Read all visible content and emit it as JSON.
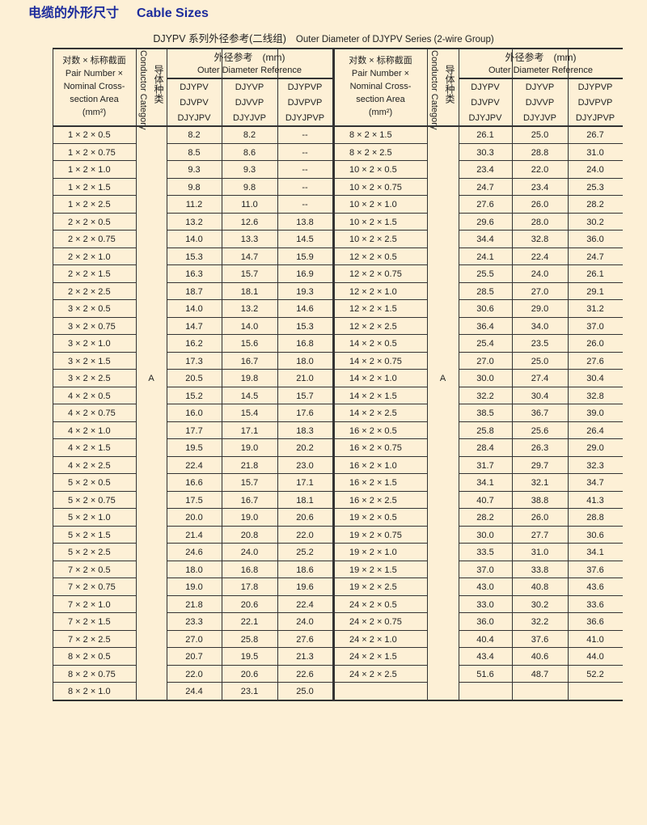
{
  "heading": {
    "zh": "电缆的外形尺寸",
    "en": "Cable Sizes"
  },
  "caption": {
    "zh": "DJYPV 系列外径参考(二线组)",
    "en": "Outer Diameter of DJYPV Series (2-wire Group)"
  },
  "header": {
    "size_zh": "对数 × 标称截面",
    "size_en_1": "Pair Number ×",
    "size_en_2": "Nominal Cross-",
    "size_en_3": "section Area",
    "size_unit": "(mm²)",
    "category_en": "Conductor Category",
    "category_zh": "导体种类",
    "od_zh": "外径参考　(mm)",
    "od_en": "Outer Diameter Reference",
    "models": [
      [
        "DJYPV",
        "DJVPV",
        "DJYJPV"
      ],
      [
        "DJYVP",
        "DJVVP",
        "DJYJVP"
      ],
      [
        "DJYPVP",
        "DJVPVP",
        "DJYJPVP"
      ]
    ]
  },
  "conductor_category": "A",
  "left_rows": [
    [
      "1 × 2 × 0.5",
      "8.2",
      "8.2",
      "--"
    ],
    [
      "1 × 2 × 0.75",
      "8.5",
      "8.6",
      "--"
    ],
    [
      "1 × 2 × 1.0",
      "9.3",
      "9.3",
      "--"
    ],
    [
      "1 × 2 × 1.5",
      "9.8",
      "9.8",
      "--"
    ],
    [
      "1 × 2 × 2.5",
      "11.2",
      "11.0",
      "--"
    ],
    [
      "2 × 2 × 0.5",
      "13.2",
      "12.6",
      "13.8"
    ],
    [
      "2 × 2 × 0.75",
      "14.0",
      "13.3",
      "14.5"
    ],
    [
      "2 × 2 × 1.0",
      "15.3",
      "14.7",
      "15.9"
    ],
    [
      "2 × 2 × 1.5",
      "16.3",
      "15.7",
      "16.9"
    ],
    [
      "2 × 2 × 2.5",
      "18.7",
      "18.1",
      "19.3"
    ],
    [
      "3 × 2 × 0.5",
      "14.0",
      "13.2",
      "14.6"
    ],
    [
      "3 × 2 × 0.75",
      "14.7",
      "14.0",
      "15.3"
    ],
    [
      "3 × 2 × 1.0",
      "16.2",
      "15.6",
      "16.8"
    ],
    [
      "3 × 2 × 1.5",
      "17.3",
      "16.7",
      "18.0"
    ],
    [
      "3 × 2 × 2.5",
      "20.5",
      "19.8",
      "21.0"
    ],
    [
      "4 × 2 × 0.5",
      "15.2",
      "14.5",
      "15.7"
    ],
    [
      "4 × 2 × 0.75",
      "16.0",
      "15.4",
      "17.6"
    ],
    [
      "4 × 2 × 1.0",
      "17.7",
      "17.1",
      "18.3"
    ],
    [
      "4 × 2 × 1.5",
      "19.5",
      "19.0",
      "20.2"
    ],
    [
      "4 × 2 × 2.5",
      "22.4",
      "21.8",
      "23.0"
    ],
    [
      "5 × 2 × 0.5",
      "16.6",
      "15.7",
      "17.1"
    ],
    [
      "5 × 2 × 0.75",
      "17.5",
      "16.7",
      "18.1"
    ],
    [
      "5 × 2 × 1.0",
      "20.0",
      "19.0",
      "20.6"
    ],
    [
      "5 × 2 × 1.5",
      "21.4",
      "20.8",
      "22.0"
    ],
    [
      "5 × 2 × 2.5",
      "24.6",
      "24.0",
      "25.2"
    ],
    [
      "7 × 2 × 0.5",
      "18.0",
      "16.8",
      "18.6"
    ],
    [
      "7 × 2 × 0.75",
      "19.0",
      "17.8",
      "19.6"
    ],
    [
      "7 × 2 × 1.0",
      "21.8",
      "20.6",
      "22.4"
    ],
    [
      "7 × 2 × 1.5",
      "23.3",
      "22.1",
      "24.0"
    ],
    [
      "7 × 2 × 2.5",
      "27.0",
      "25.8",
      "27.6"
    ],
    [
      "8 × 2 × 0.5",
      "20.7",
      "19.5",
      "21.3"
    ],
    [
      "8 × 2 × 0.75",
      "22.0",
      "20.6",
      "22.6"
    ],
    [
      "8 × 2 × 1.0",
      "24.4",
      "23.1",
      "25.0"
    ]
  ],
  "right_rows": [
    [
      "8 × 2 × 1.5",
      "26.1",
      "25.0",
      "26.7"
    ],
    [
      "8 × 2 × 2.5",
      "30.3",
      "28.8",
      "31.0"
    ],
    [
      "10 × 2 × 0.5",
      "23.4",
      "22.0",
      "24.0"
    ],
    [
      "10 × 2 × 0.75",
      "24.7",
      "23.4",
      "25.3"
    ],
    [
      "10 × 2 × 1.0",
      "27.6",
      "26.0",
      "28.2"
    ],
    [
      "10 × 2 × 1.5",
      "29.6",
      "28.0",
      "30.2"
    ],
    [
      "10 × 2 × 2.5",
      "34.4",
      "32.8",
      "36.0"
    ],
    [
      "12 × 2 × 0.5",
      "24.1",
      "22.4",
      "24.7"
    ],
    [
      "12 × 2 × 0.75",
      "25.5",
      "24.0",
      "26.1"
    ],
    [
      "12 × 2 × 1.0",
      "28.5",
      "27.0",
      "29.1"
    ],
    [
      "12 × 2 × 1.5",
      "30.6",
      "29.0",
      "31.2"
    ],
    [
      "12 × 2 × 2.5",
      "36.4",
      "34.0",
      "37.0"
    ],
    [
      "14 × 2 × 0.5",
      "25.4",
      "23.5",
      "26.0"
    ],
    [
      "14 × 2 × 0.75",
      "27.0",
      "25.0",
      "27.6"
    ],
    [
      "14 × 2 × 1.0",
      "30.0",
      "27.4",
      "30.4"
    ],
    [
      "14 × 2 × 1.5",
      "32.2",
      "30.4",
      "32.8"
    ],
    [
      "14 × 2 × 2.5",
      "38.5",
      "36.7",
      "39.0"
    ],
    [
      "16 × 2 × 0.5",
      "25.8",
      "25.6",
      "26.4"
    ],
    [
      "16 × 2 × 0.75",
      "28.4",
      "26.3",
      "29.0"
    ],
    [
      "16 × 2 × 1.0",
      "31.7",
      "29.7",
      "32.3"
    ],
    [
      "16 × 2 × 1.5",
      "34.1",
      "32.1",
      "34.7"
    ],
    [
      "16 × 2 × 2.5",
      "40.7",
      "38.8",
      "41.3"
    ],
    [
      "19 × 2 × 0.5",
      "28.2",
      "26.0",
      "28.8"
    ],
    [
      "19 × 2 × 0.75",
      "30.0",
      "27.7",
      "30.6"
    ],
    [
      "19 × 2 × 1.0",
      "33.5",
      "31.0",
      "34.1"
    ],
    [
      "19 × 2 × 1.5",
      "37.0",
      "33.8",
      "37.6"
    ],
    [
      "19 × 2 × 2.5",
      "43.0",
      "40.8",
      "43.6"
    ],
    [
      "24 × 2 × 0.5",
      "33.0",
      "30.2",
      "33.6"
    ],
    [
      "24 × 2 × 0.75",
      "36.0",
      "32.2",
      "36.6"
    ],
    [
      "24 × 2 × 1.0",
      "40.4",
      "37.6",
      "41.0"
    ],
    [
      "24 × 2 × 1.5",
      "43.4",
      "40.6",
      "44.0"
    ],
    [
      "24 × 2 × 2.5",
      "51.6",
      "48.7",
      "52.2"
    ]
  ],
  "colors": {
    "heading": "#1c2b9c",
    "background": "#fdf0d6",
    "rule": "#333333"
  }
}
